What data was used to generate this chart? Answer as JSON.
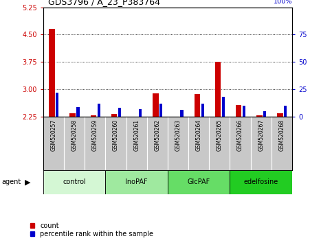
{
  "title": "GDS3796 / A_23_P383764",
  "samples": [
    "GSM520257",
    "GSM520258",
    "GSM520259",
    "GSM520260",
    "GSM520261",
    "GSM520262",
    "GSM520263",
    "GSM520264",
    "GSM520265",
    "GSM520266",
    "GSM520267",
    "GSM520268"
  ],
  "red_values": [
    4.65,
    2.35,
    2.28,
    2.33,
    2.22,
    2.88,
    2.22,
    2.87,
    3.76,
    2.57,
    2.28,
    2.35
  ],
  "blue_pct": [
    22,
    9,
    12,
    8,
    7,
    12,
    6,
    12,
    18,
    10,
    5,
    10
  ],
  "ylim": [
    2.25,
    5.25
  ],
  "yticks_left": [
    2.25,
    3.0,
    3.75,
    4.5,
    5.25
  ],
  "yticks_right": [
    0,
    25,
    50,
    75,
    100
  ],
  "groups": [
    {
      "label": "control",
      "indices": [
        0,
        1,
        2
      ],
      "color": "#d4f7d4"
    },
    {
      "label": "InoPAF",
      "indices": [
        3,
        4,
        5
      ],
      "color": "#9fe99f"
    },
    {
      "label": "GlcPAF",
      "indices": [
        6,
        7,
        8
      ],
      "color": "#66dd66"
    },
    {
      "label": "edelfosine",
      "indices": [
        9,
        10,
        11
      ],
      "color": "#22cc22"
    }
  ],
  "red_color": "#cc0000",
  "blue_color": "#0000cc",
  "base": 2.25,
  "agent_label": "agent",
  "legend_red": "count",
  "legend_blue": "percentile rank within the sample",
  "tick_color_left": "#cc0000",
  "tick_color_right": "#0000cc",
  "sample_bg_color": "#c8c8c8",
  "plot_bg_color": "#ffffff"
}
